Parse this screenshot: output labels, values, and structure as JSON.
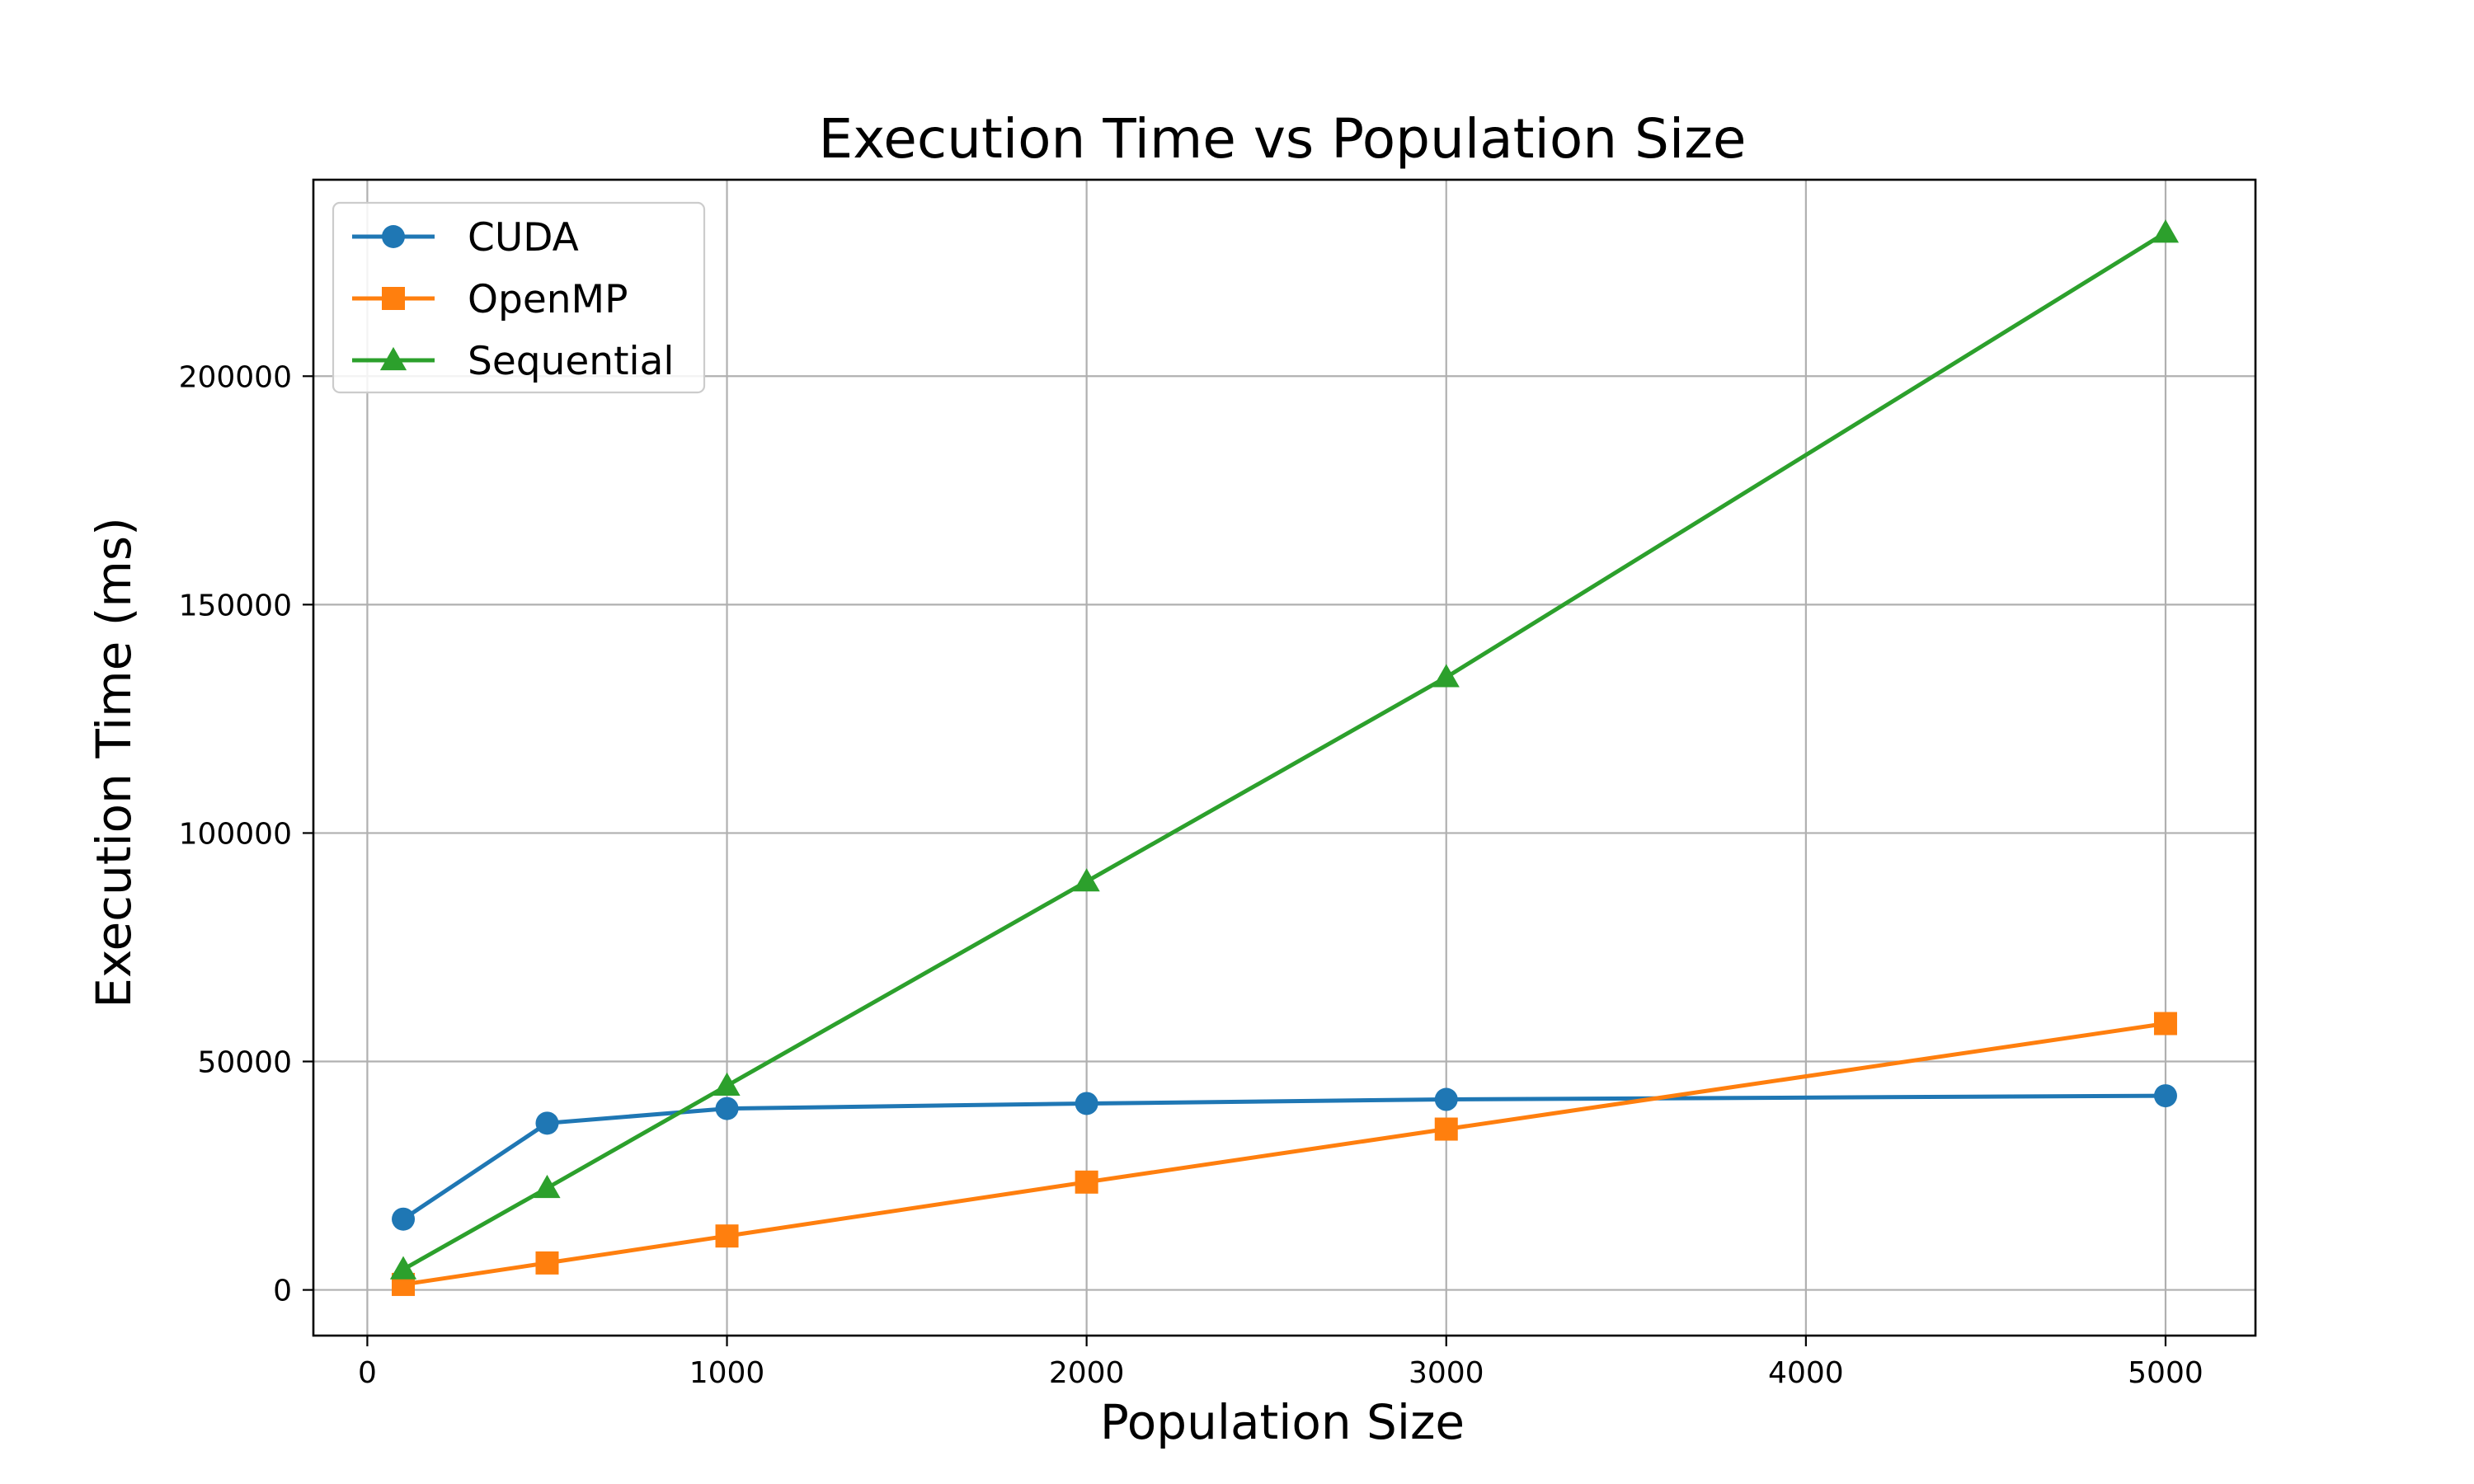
{
  "chart_data": {
    "type": "line",
    "title": "Execution Time vs Population Size",
    "xlabel": "Population Size",
    "ylabel": "Execution Time (ms)",
    "xlim": [
      -150,
      5250
    ],
    "ylim": [
      -10000,
      243000
    ],
    "xticks": [
      0,
      1000,
      2000,
      3000,
      4000,
      5000
    ],
    "yticks": [
      0,
      50000,
      100000,
      150000,
      200000
    ],
    "grid": true,
    "legend_position": "top-left",
    "x": [
      100,
      500,
      1000,
      2000,
      3000,
      5000
    ],
    "series": [
      {
        "name": "CUDA",
        "color": "#1f77b4",
        "marker": "circle",
        "values": [
          15500,
          36500,
          39700,
          40800,
          41700,
          42500
        ]
      },
      {
        "name": "OpenMP",
        "color": "#ff7f0e",
        "marker": "square",
        "values": [
          1200,
          5900,
          11800,
          23600,
          35200,
          58300
        ]
      },
      {
        "name": "Sequential",
        "color": "#2ca02c",
        "marker": "triangle",
        "values": [
          4500,
          22300,
          44700,
          89400,
          134100,
          231400
        ]
      }
    ]
  }
}
